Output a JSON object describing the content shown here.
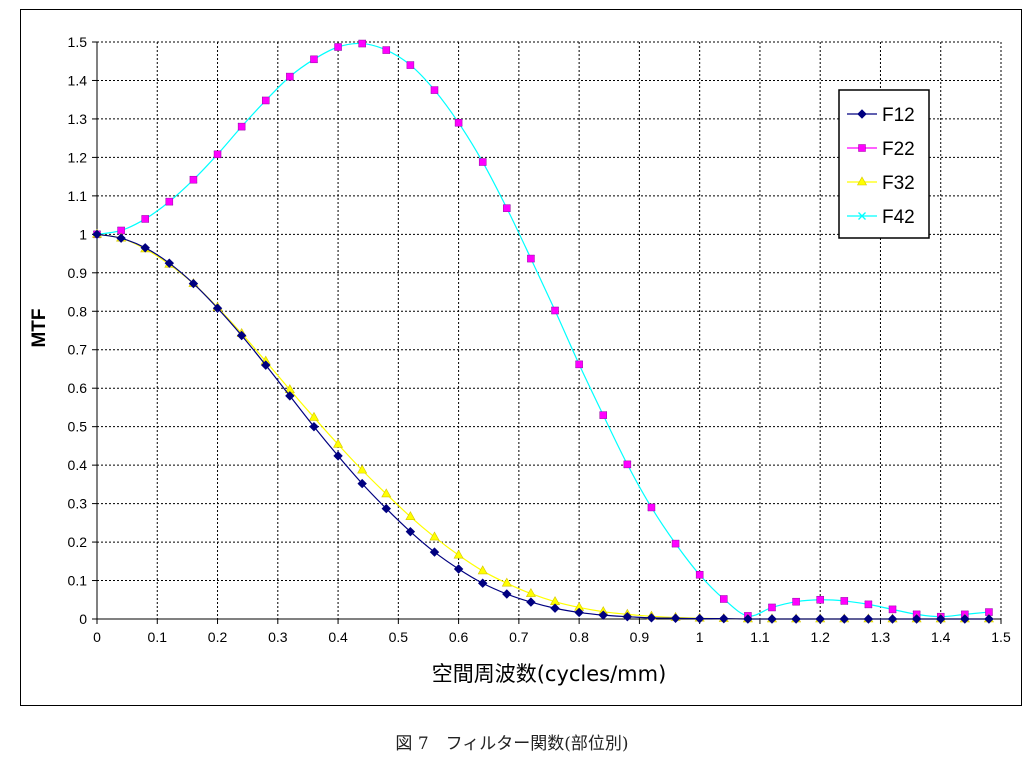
{
  "caption": "図 7　フィルター関数(部位別)",
  "chart_data": {
    "type": "line",
    "title": "",
    "xlabel": "空間周波数(cycles/mm)",
    "ylabel": "MTF",
    "xlim": [
      0,
      1.5
    ],
    "ylim": [
      0,
      1.5
    ],
    "x_ticks": [
      "0",
      "0.1",
      "0.2",
      "0.3",
      "0.4",
      "0.5",
      "0.6",
      "0.7",
      "0.8",
      "0.9",
      "1",
      "1.1",
      "1.2",
      "1.3",
      "1.4",
      "1.5"
    ],
    "y_ticks": [
      "0",
      "0.1",
      "0.2",
      "0.3",
      "0.4",
      "0.5",
      "0.6",
      "0.7",
      "0.8",
      "0.9",
      "1",
      "1.1",
      "1.2",
      "1.3",
      "1.4",
      "1.5"
    ],
    "grid": true,
    "legend_position": "top-right",
    "x": [
      0,
      0.04,
      0.08,
      0.12,
      0.16,
      0.2,
      0.24,
      0.28,
      0.32,
      0.36,
      0.4,
      0.44,
      0.48,
      0.52,
      0.56,
      0.6,
      0.64,
      0.68,
      0.72,
      0.76,
      0.8,
      0.84,
      0.88,
      0.92,
      0.96,
      1.0,
      1.04,
      1.08,
      1.12,
      1.16,
      1.2,
      1.24,
      1.28,
      1.32,
      1.36,
      1.4,
      1.44,
      1.48
    ],
    "series": [
      {
        "name": "F12",
        "color": "#000080",
        "marker": "diamond",
        "values": [
          1.0,
          0.99,
          0.965,
          0.925,
          0.872,
          0.808,
          0.737,
          0.66,
          0.58,
          0.5,
          0.424,
          0.352,
          0.287,
          0.227,
          0.174,
          0.13,
          0.093,
          0.065,
          0.044,
          0.028,
          0.017,
          0.01,
          0.006,
          0.003,
          0.002,
          0.001,
          0.001,
          0.0,
          0.0,
          0.0,
          0.0,
          0.0,
          0.0,
          0.0,
          0.0,
          0.0,
          0.0,
          0.0
        ]
      },
      {
        "name": "F22",
        "color": "#ff00ff",
        "marker": "square",
        "values": [
          1.0,
          1.01,
          1.04,
          1.085,
          1.142,
          1.208,
          1.28,
          1.348,
          1.41,
          1.455,
          1.487,
          1.496,
          1.479,
          1.44,
          1.375,
          1.29,
          1.188,
          1.068,
          0.937,
          0.802,
          0.662,
          0.53,
          0.402,
          0.29,
          0.196,
          0.115,
          0.052,
          0.008,
          0.03,
          0.045,
          0.05,
          0.047,
          0.038,
          0.025,
          0.012,
          0.006,
          0.012,
          0.018
        ]
      },
      {
        "name": "F32",
        "color": "#ffff00",
        "marker": "triangle",
        "values": [
          1.0,
          0.99,
          0.962,
          0.922,
          0.872,
          0.81,
          0.742,
          0.67,
          0.596,
          0.524,
          0.454,
          0.387,
          0.325,
          0.266,
          0.213,
          0.166,
          0.125,
          0.093,
          0.066,
          0.045,
          0.03,
          0.019,
          0.012,
          0.007,
          0.004,
          0.002,
          0.001,
          0.0,
          0.0,
          0.0,
          0.0,
          0.0,
          0.0,
          0.0,
          0.0,
          0.0,
          0.0,
          0.0
        ]
      },
      {
        "name": "F42",
        "color": "#00ffff",
        "marker": "cross",
        "values": [
          1.0,
          1.01,
          1.04,
          1.085,
          1.142,
          1.208,
          1.28,
          1.348,
          1.41,
          1.455,
          1.487,
          1.496,
          1.479,
          1.44,
          1.375,
          1.29,
          1.188,
          1.068,
          0.937,
          0.802,
          0.662,
          0.53,
          0.402,
          0.29,
          0.196,
          0.115,
          0.052,
          0.008,
          0.03,
          0.045,
          0.05,
          0.047,
          0.038,
          0.025,
          0.012,
          0.006,
          0.012,
          0.018
        ]
      }
    ]
  }
}
